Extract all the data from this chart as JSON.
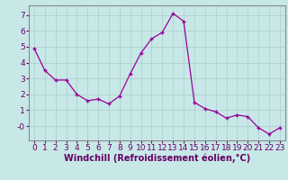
{
  "x": [
    0,
    1,
    2,
    3,
    4,
    5,
    6,
    7,
    8,
    9,
    10,
    11,
    12,
    13,
    14,
    15,
    16,
    17,
    18,
    19,
    20,
    21,
    22,
    23
  ],
  "y": [
    4.9,
    3.5,
    2.9,
    2.9,
    2.0,
    1.6,
    1.7,
    1.4,
    1.9,
    3.3,
    4.6,
    5.5,
    5.9,
    7.1,
    6.6,
    1.5,
    1.1,
    0.9,
    0.5,
    0.7,
    0.6,
    -0.1,
    -0.5,
    -0.1
  ],
  "line_color": "#990099",
  "marker": "+",
  "bg_color": "#c8e8e8",
  "grid_color": "#aacccc",
  "xlabel": "Windchill (Refroidissement éolien,°C)",
  "xlabel_color": "#660066",
  "tick_color": "#660066",
  "xlabel_fontsize": 7.0,
  "tick_fontsize": 6.5,
  "ylim": [
    -0.9,
    7.6
  ],
  "xlim": [
    -0.5,
    23.5
  ],
  "ytick_labels": [
    "-0",
    "1",
    "2",
    "3",
    "4",
    "5",
    "6",
    "7"
  ],
  "ytick_vals": [
    0,
    1,
    2,
    3,
    4,
    5,
    6,
    7
  ]
}
